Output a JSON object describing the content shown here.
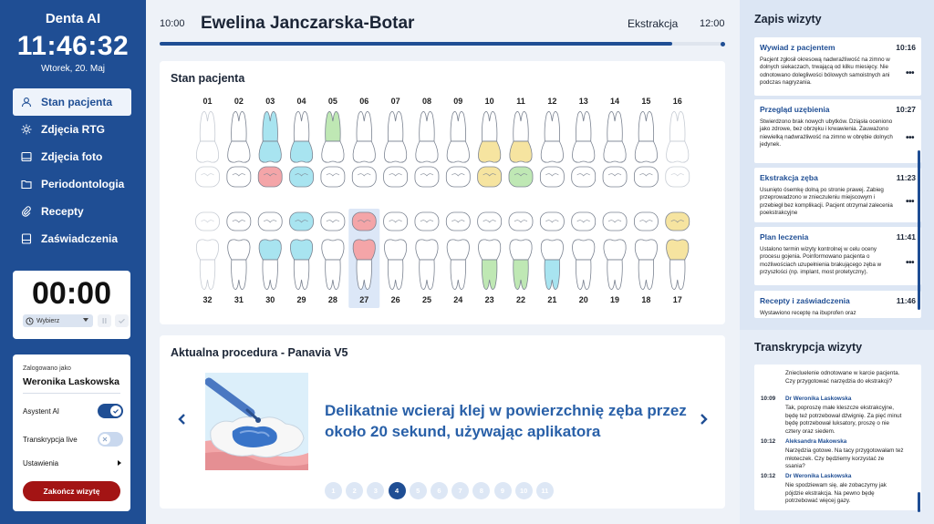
{
  "sidebar": {
    "logo": "Denta AI",
    "clock": "11:46:32",
    "date": "Wtorek, 20. Maj",
    "nav": [
      {
        "label": "Stan pacjenta",
        "icon": "user-icon",
        "active": true
      },
      {
        "label": "Zdjęcia RTG",
        "icon": "xray-icon",
        "active": false
      },
      {
        "label": "Zdjęcia foto",
        "icon": "image-icon",
        "active": false
      },
      {
        "label": "Periodontologia",
        "icon": "folder-icon",
        "active": false
      },
      {
        "label": "Recepty",
        "icon": "paperclip-icon",
        "active": false
      },
      {
        "label": "Zaświadczenia",
        "icon": "document-icon",
        "active": false
      }
    ],
    "timer": {
      "value": "00:00",
      "select_label": "Wybierz"
    },
    "user": {
      "logged_label": "Zalogowano jako",
      "name": "Weronika Laskowska",
      "ai_assistant_label": "Asystent AI",
      "ai_assistant_on": true,
      "live_transcription_label": "Transkrypcja live",
      "live_transcription_on": false,
      "settings_label": "Ustawienia",
      "end_visit_label": "Zakończ wizytę"
    }
  },
  "header": {
    "start_time": "10:00",
    "patient_name": "Ewelina Janczarska-Botar",
    "procedure": "Ekstrakcja",
    "end_time": "12:00",
    "progress": 0.91
  },
  "patient_state": {
    "title": "Stan pacjenta",
    "upper_numbers": [
      "01",
      "02",
      "03",
      "04",
      "05",
      "06",
      "07",
      "08",
      "09",
      "10",
      "11",
      "12",
      "13",
      "14",
      "15",
      "16"
    ],
    "lower_numbers": [
      "32",
      "31",
      "30",
      "29",
      "28",
      "27",
      "26",
      "25",
      "24",
      "23",
      "22",
      "21",
      "20",
      "19",
      "18",
      "17"
    ],
    "selected_lower": "27",
    "colors": {
      "blue": "#a8e4f0",
      "green": "#bfe8b4",
      "yellow": "#f6e4a0",
      "red": "#f4a5a8",
      "selected_bg": "#dce7f7"
    },
    "upper_root_fill": [
      null,
      null,
      "blue",
      null,
      "green",
      null,
      null,
      null,
      null,
      null,
      null,
      null,
      null,
      null,
      null,
      null
    ],
    "upper_crown_fill": [
      null,
      null,
      "blue",
      "blue",
      null,
      null,
      null,
      null,
      null,
      "yellow",
      "yellow",
      null,
      null,
      null,
      null,
      null
    ],
    "upper_occlusal_fill": [
      null,
      null,
      "red",
      "blue",
      null,
      null,
      null,
      null,
      null,
      "yellow",
      "green",
      null,
      null,
      null,
      null,
      null
    ],
    "lower_occlusal_fill": [
      null,
      null,
      null,
      "blue",
      null,
      "red",
      null,
      null,
      null,
      null,
      null,
      null,
      null,
      null,
      null,
      "yellow"
    ],
    "lower_crown_fill": [
      null,
      null,
      "blue",
      "blue",
      null,
      "red",
      null,
      null,
      null,
      null,
      null,
      null,
      null,
      null,
      null,
      "yellow"
    ],
    "lower_root_fill": [
      null,
      null,
      null,
      null,
      null,
      null,
      null,
      null,
      null,
      "green",
      "green",
      "blue",
      null,
      null,
      null,
      null
    ],
    "upper_faded": [
      true,
      false,
      false,
      false,
      false,
      false,
      false,
      false,
      false,
      false,
      false,
      false,
      false,
      false,
      false,
      true
    ],
    "lower_faded": [
      true,
      false,
      false,
      false,
      false,
      false,
      false,
      false,
      false,
      false,
      false,
      false,
      false,
      false,
      false,
      false
    ]
  },
  "procedure": {
    "title": "Aktualna procedura - Panavia V5",
    "instruction": "Delikatnie wcieraj klej w powierzchnię zęba przez około 20 sekund, używając aplikatora",
    "steps": [
      "1",
      "2",
      "3",
      "4",
      "5",
      "6",
      "7",
      "8",
      "9",
      "10",
      "11"
    ],
    "current_step": 4,
    "illustration_icon": "tooth-adhesive-icon"
  },
  "visit_log": {
    "title": "Zapis wizyty",
    "entries": [
      {
        "title": "Wywiad z pacjentem",
        "time": "10:16",
        "text": "Pacjent zgłosił okresową nadwrażliwość na zimno w dolnych siekaczach, trwającą od kilku miesięcy. Nie odnotowano dolegliwości bólowych samoistnych ani podczas nagryzania."
      },
      {
        "title": "Przegląd uzębienia",
        "time": "10:27",
        "text": "Stwierdzono brak nowych ubytków. Dziąsła oceniono jako zdrowe, bez obrzęku i krwawienia. Zauważono niewielką nadwrażliwość na zimno w obrębie dolnych jedynek."
      },
      {
        "title": "Ekstrakcja zęba",
        "time": "11:23",
        "text": "Usunięto ósemkę dolną po stronie prawej. Zabieg przeprowadzono w znieczuleniu miejscowym i przebiegł bez komplikacji. Pacjent otrzymał zalecenia poekstrakcyjne"
      },
      {
        "title": "Plan leczenia",
        "time": "11:41",
        "text": "Ustalono termin wizyty kontrolnej w celu oceny procesu gojenia. Poinformowano pacjenta o możliwościach uzupełnienia brakującego zęba w przyszłości (np. implant, most protetyczny)."
      },
      {
        "title": "Recepty i zaświadczenia",
        "time": "11:46",
        "text": "Wystawiono receptę na ibuprofen oraz"
      }
    ],
    "more_label": "•••"
  },
  "transcript": {
    "title": "Transkrypcja wizyty",
    "entries": [
      {
        "time": "",
        "speaker": "",
        "text": "Zniecluelenie odnotowane w karcie pacjenta. Czy przygotować narzędzia do ekstrakcji?"
      },
      {
        "time": "10:09",
        "speaker": "Dr Weronika Laskowska",
        "text": "Tak, poproszę małe kleszcze ekstrakcyjne, będę też potrzebował dźwignię. Za pięć minut będę potrzebował luksatory, proszę o nie cztery oraz siedem."
      },
      {
        "time": "10:12",
        "speaker": "Aleksandra Makowska",
        "text": "Narzędzia gotowe. Na tacy przygotowałam też młoteczek. Czy będziemy korzystać ze ssania?"
      },
      {
        "time": "10:12",
        "speaker": "Dr Weronika Laskowska",
        "text": "Nie spodziewam się, ale zobaczymy jak pójdzie ekstrakcja. Na pewno będę potrzebować więcej gazy."
      }
    ]
  }
}
